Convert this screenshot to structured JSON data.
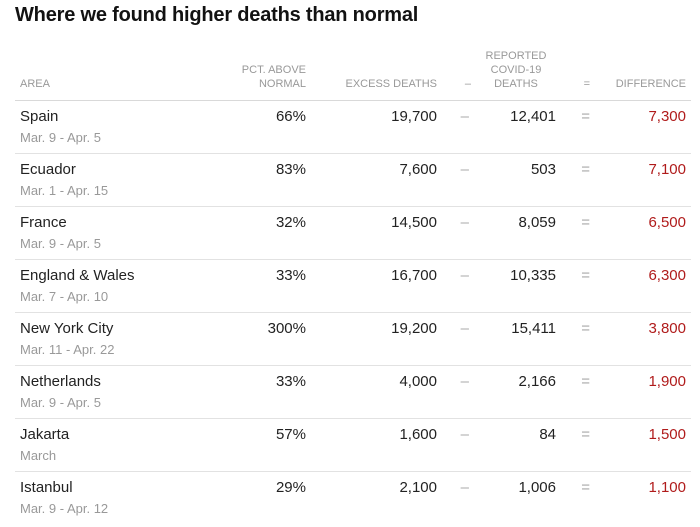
{
  "title": "Where we found higher deaths than normal",
  "columns": {
    "area": "AREA",
    "pct_above_normal": "PCT. ABOVE NORMAL",
    "pct_line1": "PCT. ABOVE",
    "pct_line2": "NORMAL",
    "excess_deaths": "EXCESS DEATHS",
    "minus": "–",
    "reported_line1": "REPORTED",
    "reported_line2": "COVID-19",
    "reported_line3": "DEATHS",
    "equals": "=",
    "difference": "DIFFERENCE"
  },
  "rows": [
    {
      "area": "Spain",
      "dates": "Mar. 9 - Apr. 5",
      "pct": "66%",
      "excess": "19,700",
      "minus": "–",
      "reported": "12,401",
      "eq": "=",
      "diff": "7,300"
    },
    {
      "area": "Ecuador",
      "dates": "Mar. 1 - Apr. 15",
      "pct": "83%",
      "excess": "7,600",
      "minus": "–",
      "reported": "503",
      "eq": "=",
      "diff": "7,100"
    },
    {
      "area": "France",
      "dates": "Mar. 9 - Apr. 5",
      "pct": "32%",
      "excess": "14,500",
      "minus": "–",
      "reported": "8,059",
      "eq": "=",
      "diff": "6,500"
    },
    {
      "area": "England & Wales",
      "dates": "Mar. 7 - Apr. 10",
      "pct": "33%",
      "excess": "16,700",
      "minus": "–",
      "reported": "10,335",
      "eq": "=",
      "diff": "6,300"
    },
    {
      "area": "New York City",
      "dates": "Mar. 11 - Apr. 22",
      "pct": "300%",
      "excess": "19,200",
      "minus": "–",
      "reported": "15,411",
      "eq": "=",
      "diff": "3,800"
    },
    {
      "area": "Netherlands",
      "dates": "Mar. 9 - Apr. 5",
      "pct": "33%",
      "excess": "4,000",
      "minus": "–",
      "reported": "2,166",
      "eq": "=",
      "diff": "1,900"
    },
    {
      "area": "Jakarta",
      "dates": "March",
      "pct": "57%",
      "excess": "1,600",
      "minus": "–",
      "reported": "84",
      "eq": "=",
      "diff": "1,500"
    },
    {
      "area": "Istanbul",
      "dates": "Mar. 9 - Apr. 12",
      "pct": "29%",
      "excess": "2,100",
      "minus": "–",
      "reported": "1,006",
      "eq": "=",
      "diff": "1,100"
    }
  ],
  "colors": {
    "difference": "#b01b1b",
    "muted": "#999999",
    "text": "#222222"
  }
}
